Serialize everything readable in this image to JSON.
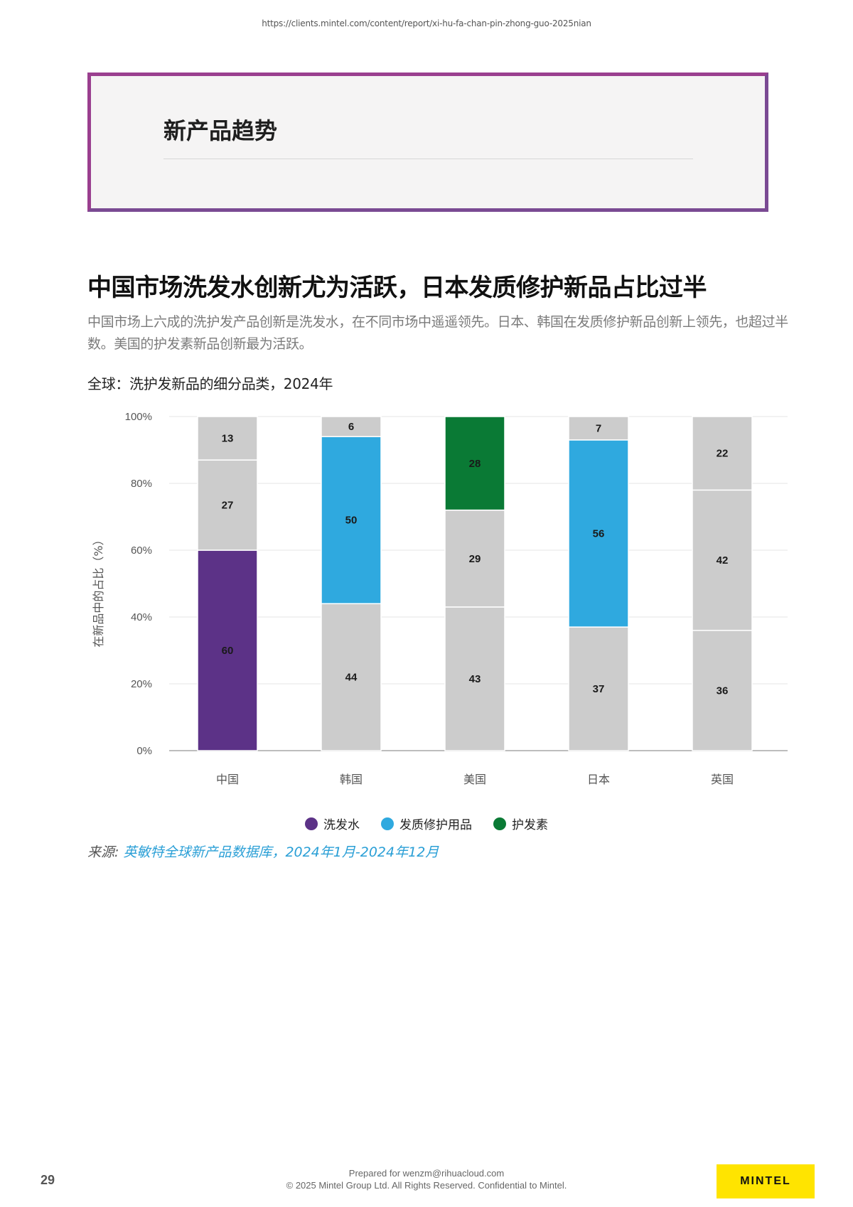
{
  "url": "https://clients.mintel.com/content/report/xi-hu-fa-chan-pin-zhong-guo-2025nian",
  "section_title": "新产品趋势",
  "headline": "中国市场洗发水创新尤为活跃，日本发质修护新品占比过半",
  "intro": "中国市场上六成的洗护发产品创新是洗发水，在不同市场中遥遥领先。日本、韩国在发质修护新品创新上领先，也超过半数。美国的护发素新品创新最为活跃。",
  "chart_title": "全球：洗护发新品的细分品类，2024年",
  "chart_data": {
    "type": "bar",
    "stacked": true,
    "categories": [
      "中国",
      "韩国",
      "美国",
      "日本",
      "英国"
    ],
    "ylabel": "在新品中的占比（%）",
    "ylim": [
      0,
      100
    ],
    "yticks": [
      "0%",
      "20%",
      "40%",
      "60%",
      "80%",
      "100%"
    ],
    "grid": true,
    "legend_position": "bottom",
    "series": [
      {
        "name": "洗发水",
        "color": "#5c3287",
        "values": [
          60,
          null,
          null,
          null,
          null
        ]
      },
      {
        "name": "发质修护用品",
        "color": "#2fa9df",
        "values": [
          null,
          50,
          null,
          56,
          null
        ]
      },
      {
        "name": "护发素",
        "color": "#0a7a35",
        "values": [
          null,
          null,
          28,
          null,
          null
        ]
      }
    ],
    "other_segments": {
      "color": "#cccccc",
      "values": [
        [
          27,
          13
        ],
        [
          44,
          6
        ],
        [
          43,
          29
        ],
        [
          37,
          7
        ],
        [
          36,
          42,
          22
        ]
      ]
    },
    "stack_order": [
      [
        60,
        27,
        13
      ],
      [
        44,
        50,
        6
      ],
      [
        43,
        29,
        28
      ],
      [
        37,
        56,
        7
      ],
      [
        36,
        42,
        22
      ]
    ],
    "stack_colors": [
      [
        "#5c3287",
        "#cccccc",
        "#cccccc"
      ],
      [
        "#cccccc",
        "#2fa9df",
        "#cccccc"
      ],
      [
        "#cccccc",
        "#cccccc",
        "#0a7a35"
      ],
      [
        "#cccccc",
        "#2fa9df",
        "#cccccc"
      ],
      [
        "#cccccc",
        "#cccccc",
        "#cccccc"
      ]
    ]
  },
  "legend": [
    {
      "label": "洗发水",
      "color": "#5c3287"
    },
    {
      "label": "发质修护用品",
      "color": "#2fa9df"
    },
    {
      "label": "护发素",
      "color": "#0a7a35"
    }
  ],
  "source": {
    "label": "来源:",
    "text": "英敏特全球新产品数据库，2024年1月-2024年12月"
  },
  "footer": {
    "page_number": "29",
    "prepared": "Prepared for wenzm@rihuacloud.com",
    "copyright": "© 2025 Mintel Group Ltd. All Rights Reserved. Confidential to Mintel.",
    "logo_text": "MINTEL"
  }
}
